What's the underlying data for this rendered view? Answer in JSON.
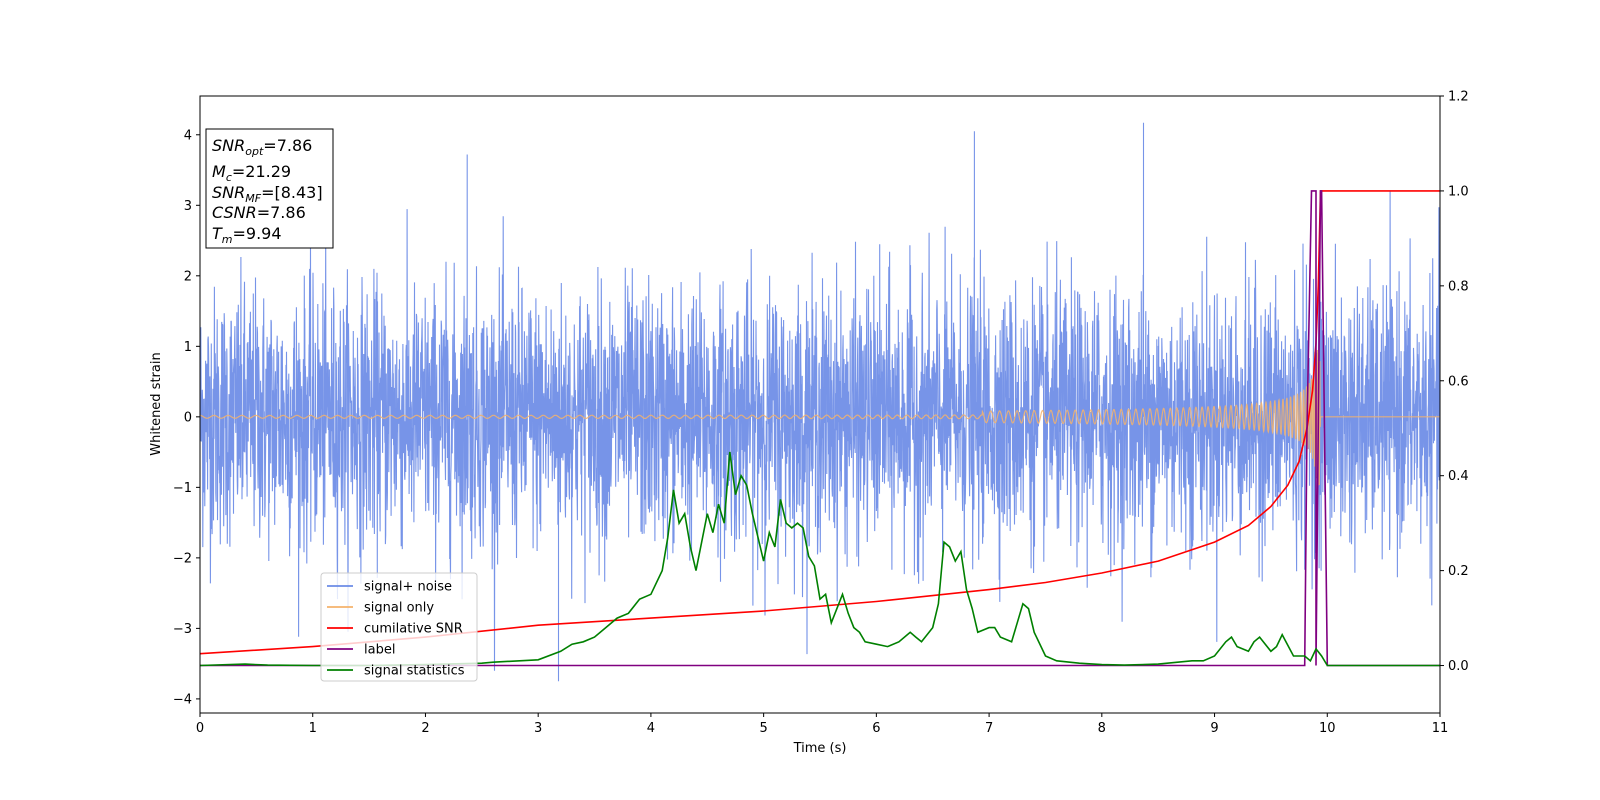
{
  "chart_data": {
    "type": "line",
    "title": "",
    "xlabel": "Time (s)",
    "ylabel": "Whitened strain",
    "xlim": [
      0,
      11
    ],
    "ylim": [
      -4.2,
      4.55
    ],
    "y2lim": [
      -0.1,
      1.2
    ],
    "x_ticks": [
      0,
      1,
      2,
      3,
      4,
      5,
      6,
      7,
      8,
      9,
      10,
      11
    ],
    "y_ticks": [
      -4,
      -3,
      -2,
      -1,
      0,
      1,
      2,
      3,
      4
    ],
    "y2_ticks": [
      0.0,
      0.2,
      0.4,
      0.6,
      0.8,
      1.0,
      1.2
    ],
    "grid": false,
    "legend_position": "lower-left",
    "series": [
      {
        "name": "signal+ noise",
        "axis": "left",
        "color": "#6b8be6",
        "style": "dense gaussian noise, std ~0.9, peaks up to 4.17 near 8.37 s, min -3.75 near 3.18 s",
        "values": [],
        "noise_std": 0.9,
        "noise_max": 4.17,
        "noise_min": -3.75
      },
      {
        "name": "signal only",
        "axis": "left",
        "color": "#f4b36b",
        "style": "chirp, amplitude ~0.02 until ~6 s, grows to ~1.0 near 9.9 s, ends at 9.94 s",
        "chirp_end": 9.94,
        "chirp_peak_amplitude": 1.0
      },
      {
        "name": "cumilative SNR",
        "axis": "right",
        "color": "#ff0000",
        "x": [
          0,
          1,
          2,
          3,
          4,
          5,
          6,
          7,
          7.5,
          8,
          8.5,
          9,
          9.3,
          9.5,
          9.65,
          9.75,
          9.82,
          9.87,
          9.9,
          9.92,
          9.94,
          11
        ],
        "values": [
          0.025,
          0.04,
          0.06,
          0.085,
          0.1,
          0.115,
          0.135,
          0.16,
          0.175,
          0.195,
          0.22,
          0.26,
          0.295,
          0.335,
          0.38,
          0.43,
          0.5,
          0.58,
          0.68,
          0.8,
          1.0,
          1.0
        ]
      },
      {
        "name": "label",
        "axis": "right",
        "color": "#800080",
        "x": [
          0,
          9.8,
          9.82,
          9.86,
          9.87,
          9.9,
          9.9,
          9.94,
          9.95,
          10.0,
          11
        ],
        "values": [
          0.0,
          0.0,
          0.5,
          1.0,
          1.0,
          1.0,
          0.0,
          1.0,
          1.0,
          0.0,
          0.0
        ]
      },
      {
        "name": "signal statistics",
        "axis": "right",
        "color": "#008000",
        "x": [
          0,
          0.4,
          0.6,
          1,
          1.5,
          2,
          2.5,
          2.6,
          3,
          3.2,
          3.3,
          3.4,
          3.5,
          3.6,
          3.7,
          3.8,
          3.9,
          4.0,
          4.1,
          4.15,
          4.2,
          4.25,
          4.3,
          4.35,
          4.4,
          4.5,
          4.55,
          4.6,
          4.65,
          4.7,
          4.75,
          4.8,
          4.85,
          4.9,
          5.0,
          5.05,
          5.1,
          5.15,
          5.2,
          5.25,
          5.3,
          5.35,
          5.4,
          5.45,
          5.5,
          5.55,
          5.6,
          5.7,
          5.75,
          5.8,
          5.85,
          5.9,
          6.0,
          6.1,
          6.2,
          6.3,
          6.35,
          6.4,
          6.5,
          6.55,
          6.6,
          6.65,
          6.7,
          6.75,
          6.8,
          6.85,
          6.9,
          7.0,
          7.05,
          7.1,
          7.2,
          7.3,
          7.35,
          7.4,
          7.5,
          7.6,
          7.8,
          8.0,
          8.2,
          8.5,
          8.8,
          8.9,
          9.0,
          9.1,
          9.15,
          9.2,
          9.3,
          9.35,
          9.4,
          9.5,
          9.55,
          9.6,
          9.7,
          9.8,
          9.85,
          9.9,
          9.95,
          10.0,
          11.0
        ],
        "values": [
          0.0,
          0.003,
          0.001,
          0.0,
          0.0,
          0.002,
          0.005,
          0.007,
          0.012,
          0.03,
          0.045,
          0.05,
          0.06,
          0.08,
          0.1,
          0.11,
          0.14,
          0.15,
          0.2,
          0.27,
          0.37,
          0.3,
          0.32,
          0.25,
          0.2,
          0.32,
          0.28,
          0.34,
          0.3,
          0.45,
          0.36,
          0.4,
          0.38,
          0.32,
          0.22,
          0.28,
          0.25,
          0.35,
          0.3,
          0.29,
          0.3,
          0.29,
          0.23,
          0.21,
          0.14,
          0.15,
          0.09,
          0.15,
          0.11,
          0.08,
          0.07,
          0.05,
          0.045,
          0.04,
          0.05,
          0.07,
          0.06,
          0.05,
          0.08,
          0.13,
          0.26,
          0.25,
          0.22,
          0.24,
          0.16,
          0.12,
          0.07,
          0.08,
          0.08,
          0.06,
          0.05,
          0.13,
          0.12,
          0.07,
          0.02,
          0.01,
          0.005,
          0.002,
          0.001,
          0.003,
          0.01,
          0.01,
          0.02,
          0.05,
          0.06,
          0.04,
          0.03,
          0.05,
          0.06,
          0.03,
          0.04,
          0.065,
          0.02,
          0.02,
          0.01,
          0.035,
          0.02,
          0.0,
          0.0
        ]
      }
    ]
  },
  "info_box": {
    "snr_opt": {
      "base": "SNR",
      "sub": "opt",
      "value": "=7.86"
    },
    "mc": {
      "base": "M",
      "sub": "c",
      "value": "=21.29"
    },
    "snr_mf": {
      "base": "SNR",
      "sub": "MF",
      "value": "=[8.43]"
    },
    "csnr": {
      "base": "CSNR",
      "value": "=7.86"
    },
    "tm": {
      "base": "T",
      "sub": "m",
      "value": "=9.94"
    }
  },
  "legend": {
    "items": [
      {
        "label": "signal+ noise",
        "color": "#6b8be6"
      },
      {
        "label": "signal only",
        "color": "#f4b36b"
      },
      {
        "label": "cumilative SNR",
        "color": "#ff0000"
      },
      {
        "label": "label",
        "color": "#800080"
      },
      {
        "label": "signal statistics",
        "color": "#008000"
      }
    ]
  }
}
